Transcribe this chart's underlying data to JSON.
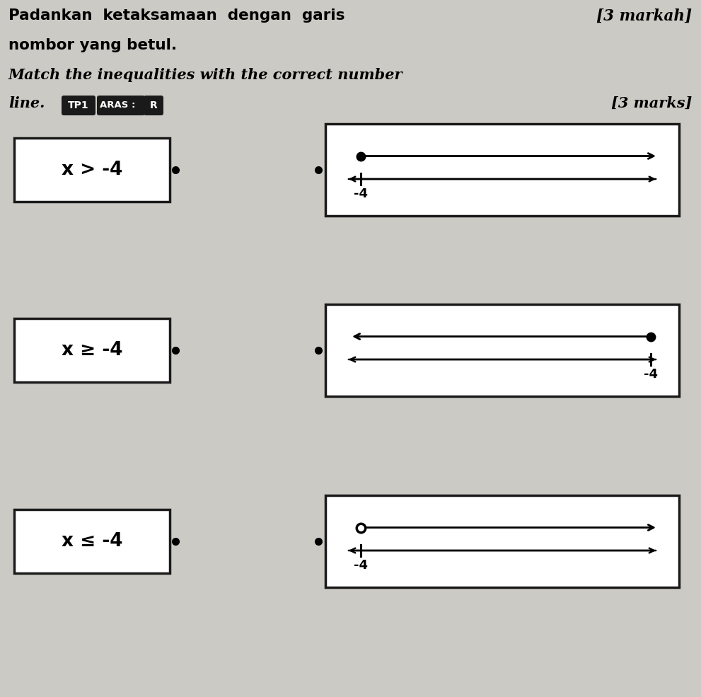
{
  "bg_color": "#cccac4",
  "title_line1": "Padankan  ketaksamaan  dengan  garis",
  "title_line2": "nombor yang betul.",
  "title_marks_bm": "[3 markah]",
  "title_line3": "Match the inequalities with the correct number",
  "title_line4": "line.",
  "title_marks_en": "[3 marks]",
  "badge_tp1": "TP1",
  "badge_aras": "ARAS :",
  "badge_r": "R",
  "rows": [
    {
      "ineq_text": "x > -4",
      "dot_filled": true,
      "arrow_dir": "right",
      "dot_side": "left",
      "label": "-4"
    },
    {
      "ineq_text": "x ≥ -4",
      "dot_filled": true,
      "arrow_dir": "left",
      "dot_side": "right",
      "label": "-4"
    },
    {
      "ineq_text": "x ≤ -4",
      "dot_filled": false,
      "arrow_dir": "right",
      "dot_side": "left",
      "label": "-4"
    }
  ],
  "fig_w": 9.91,
  "fig_h": 9.85,
  "dpi": 100
}
